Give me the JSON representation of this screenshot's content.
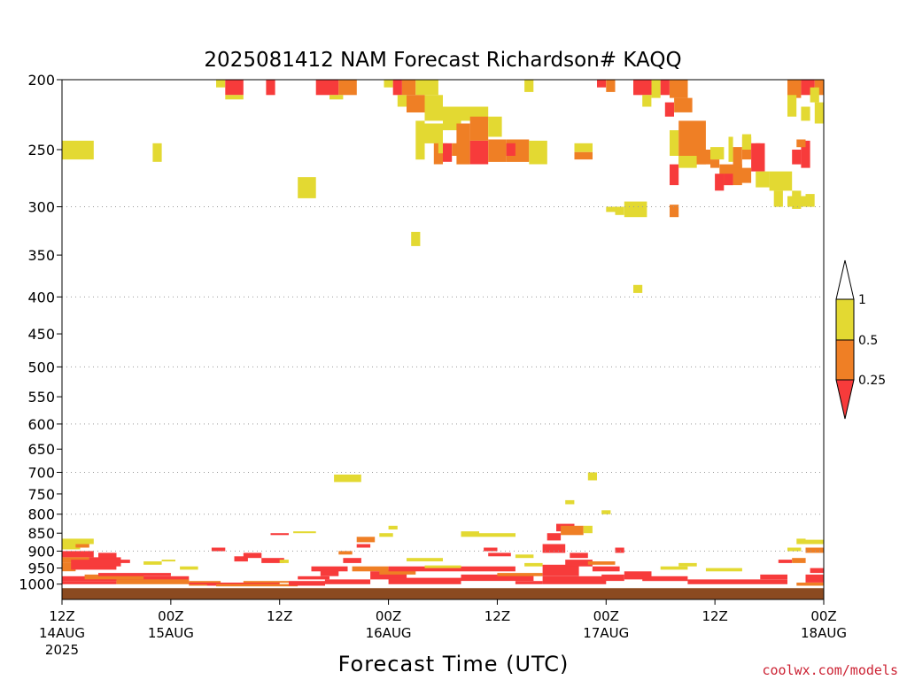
{
  "chart_data": {
    "type": "heatmap",
    "title": "2025081412 NAM Forecast Richardson# KAQQ",
    "xlabel": "Forecast Time (UTC)",
    "ylabel": "",
    "credit": "coolwx.com/models",
    "yaxis": {
      "scale": "log-pressure",
      "range": [
        1050,
        200
      ],
      "ticks": [
        200,
        250,
        300,
        350,
        400,
        450,
        500,
        550,
        600,
        650,
        700,
        750,
        800,
        850,
        900,
        950,
        1000
      ]
    },
    "xaxis": {
      "range_hours": [
        0,
        84
      ],
      "ticks": [
        {
          "hour": 0,
          "line1": "12Z",
          "line2": "14AUG",
          "line3": "2025"
        },
        {
          "hour": 12,
          "line1": "00Z",
          "line2": "15AUG",
          "line3": ""
        },
        {
          "hour": 24,
          "line1": "12Z",
          "line2": "",
          "line3": ""
        },
        {
          "hour": 36,
          "line1": "00Z",
          "line2": "16AUG",
          "line3": ""
        },
        {
          "hour": 48,
          "line1": "12Z",
          "line2": "",
          "line3": ""
        },
        {
          "hour": 60,
          "line1": "00Z",
          "line2": "17AUG",
          "line3": ""
        },
        {
          "hour": 72,
          "line1": "12Z",
          "line2": "",
          "line3": ""
        },
        {
          "hour": 84,
          "line1": "00Z",
          "line2": "18AUG",
          "line3": ""
        }
      ]
    },
    "gridlines_at": [
      300,
      400,
      500,
      600,
      700,
      800,
      900
    ],
    "colors": {
      "red": "#f73b3b",
      "orange": "#ef7f25",
      "yellow": "#e3d932",
      "ground": "#8b4a20"
    },
    "colorbar": {
      "labels": [
        "1",
        "0.5",
        "0.25"
      ],
      "bins": [
        "< 0.25",
        "0.25 - 0.5",
        "0.5 - 1",
        "> 1"
      ],
      "bin_colors": [
        "#f73b3b",
        "#ef7f25",
        "#e3d932",
        "#ffffff"
      ]
    },
    "ground_level_hPa": 1010,
    "cells": [
      [
        0.0,
        3.5,
        258,
        243,
        "yellow"
      ],
      [
        10.0,
        11.0,
        260,
        245,
        "yellow"
      ],
      [
        17.0,
        18.0,
        205,
        200,
        "yellow"
      ],
      [
        18.0,
        20.0,
        210,
        200,
        "red"
      ],
      [
        18.0,
        20.0,
        213,
        210,
        "yellow"
      ],
      [
        22.5,
        23.5,
        210,
        200,
        "red"
      ],
      [
        26.0,
        28.0,
        292,
        273,
        "yellow"
      ],
      [
        28.0,
        30.5,
        210,
        200,
        "red"
      ],
      [
        30.5,
        32.5,
        210,
        200,
        "orange"
      ],
      [
        29.5,
        31.0,
        213,
        210,
        "yellow"
      ],
      [
        35.5,
        36.5,
        205,
        200,
        "yellow"
      ],
      [
        36.5,
        37.5,
        210,
        200,
        "red"
      ],
      [
        37.0,
        38.0,
        218,
        210,
        "yellow"
      ],
      [
        37.5,
        39.0,
        210,
        200,
        "orange"
      ],
      [
        39.0,
        41.5,
        210,
        200,
        "yellow"
      ],
      [
        38.0,
        40.0,
        222,
        210,
        "orange"
      ],
      [
        40.0,
        42.0,
        228,
        210,
        "yellow"
      ],
      [
        38.5,
        39.5,
        340,
        325,
        "yellow"
      ],
      [
        39.0,
        40.0,
        258,
        228,
        "yellow"
      ],
      [
        40.0,
        42.0,
        245,
        230,
        "yellow"
      ],
      [
        41.0,
        42.0,
        262,
        245,
        "orange"
      ],
      [
        41.5,
        42.5,
        253,
        245,
        "yellow"
      ],
      [
        42.0,
        44.0,
        235,
        218,
        "yellow"
      ],
      [
        42.0,
        43.0,
        260,
        245,
        "red"
      ],
      [
        43.0,
        44.0,
        255,
        245,
        "orange"
      ],
      [
        44.0,
        47.0,
        228,
        218,
        "yellow"
      ],
      [
        43.5,
        45.0,
        262,
        230,
        "orange"
      ],
      [
        45.0,
        47.0,
        262,
        243,
        "red"
      ],
      [
        45.0,
        47.0,
        243,
        225,
        "orange"
      ],
      [
        47.0,
        48.5,
        225,
        240,
        "yellow"
      ],
      [
        47.0,
        49.0,
        260,
        242,
        "orange"
      ],
      [
        49.0,
        51.5,
        260,
        242,
        "orange"
      ],
      [
        49.0,
        50.0,
        255,
        245,
        "red"
      ],
      [
        51.5,
        53.5,
        262,
        243,
        "yellow"
      ],
      [
        51.0,
        52.0,
        208,
        200,
        "yellow"
      ],
      [
        56.5,
        58.5,
        252,
        245,
        "yellow"
      ],
      [
        56.5,
        58.5,
        258,
        252,
        "orange"
      ],
      [
        59.0,
        60.0,
        205,
        200,
        "red"
      ],
      [
        60.0,
        61.0,
        208,
        200,
        "orange"
      ],
      [
        60.0,
        61.0,
        305,
        300,
        "yellow"
      ],
      [
        61.0,
        62.0,
        308,
        300,
        "yellow"
      ],
      [
        62.0,
        64.5,
        310,
        295,
        "yellow"
      ],
      [
        63.0,
        64.0,
        395,
        385,
        "yellow"
      ],
      [
        63.0,
        65.0,
        210,
        200,
        "red"
      ],
      [
        64.0,
        65.0,
        218,
        210,
        "yellow"
      ],
      [
        65.0,
        66.0,
        212,
        200,
        "yellow"
      ],
      [
        66.0,
        67.0,
        210,
        200,
        "red"
      ],
      [
        66.5,
        67.5,
        225,
        215,
        "red"
      ],
      [
        67.0,
        69.0,
        212,
        200,
        "orange"
      ],
      [
        67.5,
        69.5,
        222,
        212,
        "orange"
      ],
      [
        67.0,
        68.0,
        255,
        235,
        "yellow"
      ],
      [
        67.0,
        68.0,
        280,
        262,
        "red"
      ],
      [
        67.0,
        68.0,
        310,
        298,
        "orange"
      ],
      [
        68.0,
        71.0,
        262,
        228,
        "orange"
      ],
      [
        68.0,
        70.0,
        265,
        255,
        "yellow"
      ],
      [
        70.0,
        71.5,
        262,
        250,
        "orange"
      ],
      [
        71.5,
        73.0,
        258,
        248,
        "yellow"
      ],
      [
        71.5,
        72.5,
        265,
        258,
        "orange"
      ],
      [
        72.5,
        74.0,
        280,
        262,
        "orange"
      ],
      [
        74.0,
        75.0,
        280,
        262,
        "orange"
      ],
      [
        73.5,
        74.0,
        260,
        240,
        "yellow"
      ],
      [
        74.0,
        75.0,
        268,
        248,
        "orange"
      ],
      [
        75.0,
        76.0,
        258,
        240,
        "orange"
      ],
      [
        72.0,
        73.0,
        285,
        270,
        "red"
      ],
      [
        73.0,
        74.0,
        280,
        270,
        "red"
      ],
      [
        74.0,
        76.0,
        278,
        265,
        "orange"
      ],
      [
        75.0,
        76.0,
        250,
        238,
        "yellow"
      ],
      [
        76.5,
        77.0,
        262,
        245,
        "orange"
      ],
      [
        76.0,
        77.5,
        268,
        245,
        "red"
      ],
      [
        76.5,
        78.0,
        282,
        268,
        "yellow"
      ],
      [
        78.0,
        80.5,
        285,
        268,
        "yellow"
      ],
      [
        78.5,
        79.5,
        300,
        285,
        "yellow"
      ],
      [
        80.5,
        81.5,
        302,
        285,
        "yellow"
      ],
      [
        80.0,
        82.0,
        300,
        290,
        "yellow"
      ],
      [
        80.5,
        81.5,
        262,
        250,
        "red"
      ],
      [
        81.5,
        82.5,
        265,
        243,
        "red"
      ],
      [
        81.0,
        82.0,
        248,
        242,
        "orange"
      ],
      [
        80.0,
        81.5,
        212,
        200,
        "orange"
      ],
      [
        81.5,
        83.0,
        210,
        200,
        "red"
      ],
      [
        83.0,
        84.0,
        210,
        200,
        "orange"
      ],
      [
        81.5,
        82.5,
        228,
        218,
        "yellow"
      ],
      [
        82.5,
        83.5,
        215,
        205,
        "yellow"
      ],
      [
        83.0,
        84.0,
        230,
        215,
        "yellow"
      ],
      [
        80.0,
        81.0,
        225,
        210,
        "yellow"
      ],
      [
        82.0,
        83.0,
        300,
        288,
        "yellow"
      ],
      [
        30.0,
        33.0,
        722,
        705,
        "yellow"
      ],
      [
        58.0,
        59.0,
        718,
        700,
        "yellow"
      ],
      [
        55.5,
        56.5,
        775,
        765,
        "yellow"
      ],
      [
        59.5,
        60.5,
        800,
        790,
        "yellow"
      ],
      [
        0.0,
        3.5,
        880,
        865,
        "yellow"
      ],
      [
        0.0,
        2.0,
        895,
        880,
        "yellow"
      ],
      [
        1.5,
        3.0,
        890,
        880,
        "orange"
      ],
      [
        0.0,
        3.5,
        918,
        900,
        "red"
      ],
      [
        0.0,
        3.5,
        935,
        918,
        "orange"
      ],
      [
        0.0,
        1.5,
        960,
        935,
        "orange"
      ],
      [
        1.0,
        6.0,
        955,
        925,
        "red"
      ],
      [
        3.0,
        6.5,
        945,
        918,
        "red"
      ],
      [
        4.0,
        6.0,
        920,
        905,
        "red"
      ],
      [
        6.0,
        7.5,
        935,
        925,
        "red"
      ],
      [
        0.0,
        14.0,
        990,
        975,
        "red"
      ],
      [
        0.0,
        6.0,
        1000,
        990,
        "red"
      ],
      [
        6.0,
        14.0,
        1000,
        985,
        "orange"
      ],
      [
        2.5,
        9.0,
        985,
        970,
        "orange"
      ],
      [
        4.0,
        12.0,
        975,
        965,
        "red"
      ],
      [
        9.0,
        11.0,
        940,
        930,
        "yellow"
      ],
      [
        11.0,
        12.5,
        930,
        925,
        "yellow"
      ],
      [
        13.0,
        15.0,
        955,
        945,
        "yellow"
      ],
      [
        14.0,
        17.5,
        1005,
        990,
        "orange"
      ],
      [
        14.0,
        18.0,
        1000,
        995,
        "red"
      ],
      [
        16.5,
        18.0,
        900,
        890,
        "red"
      ],
      [
        19.0,
        20.5,
        930,
        915,
        "red"
      ],
      [
        20.0,
        22.0,
        920,
        905,
        "red"
      ],
      [
        22.0,
        24.5,
        935,
        920,
        "red"
      ],
      [
        24.0,
        25.0,
        935,
        925,
        "yellow"
      ],
      [
        16.0,
        24.0,
        1005,
        995,
        "red"
      ],
      [
        17.0,
        26.0,
        1010,
        1000,
        "orange"
      ],
      [
        20.0,
        25.0,
        995,
        990,
        "orange"
      ],
      [
        25.5,
        28.0,
        850,
        845,
        "yellow"
      ],
      [
        23.0,
        25.0,
        855,
        850,
        "red"
      ],
      [
        25.0,
        29.0,
        1005,
        990,
        "red"
      ],
      [
        26.0,
        29.5,
        985,
        975,
        "red"
      ],
      [
        27.5,
        29.5,
        960,
        945,
        "red"
      ],
      [
        28.5,
        30.5,
        975,
        955,
        "red"
      ],
      [
        29.5,
        31.5,
        960,
        945,
        "red"
      ],
      [
        31.0,
        33.0,
        935,
        920,
        "red"
      ],
      [
        30.5,
        32.0,
        910,
        900,
        "orange"
      ],
      [
        29.0,
        34.0,
        1000,
        985,
        "red"
      ],
      [
        32.0,
        36.0,
        960,
        945,
        "orange"
      ],
      [
        32.5,
        34.0,
        890,
        880,
        "red"
      ],
      [
        32.5,
        34.5,
        875,
        860,
        "orange"
      ],
      [
        35.0,
        36.5,
        860,
        850,
        "yellow"
      ],
      [
        36.0,
        37.0,
        840,
        830,
        "yellow"
      ],
      [
        34.0,
        38.0,
        985,
        960,
        "red"
      ],
      [
        35.0,
        39.0,
        970,
        955,
        "orange"
      ],
      [
        36.0,
        44.0,
        1000,
        980,
        "red"
      ],
      [
        36.0,
        44.0,
        960,
        945,
        "red"
      ],
      [
        38.0,
        42.0,
        930,
        920,
        "yellow"
      ],
      [
        40.0,
        44.0,
        950,
        942,
        "yellow"
      ],
      [
        44.0,
        46.0,
        860,
        845,
        "yellow"
      ],
      [
        46.0,
        50.0,
        860,
        850,
        "yellow"
      ],
      [
        46.5,
        48.0,
        900,
        890,
        "red"
      ],
      [
        47.0,
        49.5,
        915,
        905,
        "red"
      ],
      [
        44.0,
        52.0,
        990,
        970,
        "red"
      ],
      [
        44.0,
        50.0,
        960,
        945,
        "red"
      ],
      [
        48.0,
        53.0,
        975,
        965,
        "orange"
      ],
      [
        50.0,
        53.0,
        1000,
        990,
        "red"
      ],
      [
        51.0,
        53.0,
        945,
        935,
        "yellow"
      ],
      [
        50.0,
        52.0,
        920,
        910,
        "yellow"
      ],
      [
        53.0,
        55.5,
        905,
        880,
        "red"
      ],
      [
        53.5,
        55.0,
        870,
        850,
        "red"
      ],
      [
        54.5,
        56.5,
        845,
        825,
        "red"
      ],
      [
        55.0,
        57.5,
        855,
        830,
        "orange"
      ],
      [
        57.5,
        58.5,
        850,
        830,
        "yellow"
      ],
      [
        53.0,
        57.0,
        975,
        940,
        "red"
      ],
      [
        53.0,
        60.0,
        1000,
        975,
        "red"
      ],
      [
        55.5,
        58.5,
        945,
        925,
        "red"
      ],
      [
        56.0,
        58.0,
        920,
        905,
        "red"
      ],
      [
        58.0,
        61.0,
        940,
        930,
        "orange"
      ],
      [
        58.5,
        61.5,
        960,
        945,
        "red"
      ],
      [
        59.5,
        62.0,
        990,
        970,
        "red"
      ],
      [
        61.0,
        62.0,
        905,
        890,
        "red"
      ],
      [
        62.0,
        65.0,
        985,
        960,
        "red"
      ],
      [
        64.0,
        69.0,
        990,
        975,
        "red"
      ],
      [
        66.0,
        69.0,
        955,
        945,
        "yellow"
      ],
      [
        68.0,
        70.0,
        945,
        935,
        "yellow"
      ],
      [
        69.0,
        73.5,
        1000,
        985,
        "red"
      ],
      [
        71.0,
        75.0,
        960,
        950,
        "yellow"
      ],
      [
        73.5,
        80.0,
        1000,
        985,
        "red"
      ],
      [
        77.0,
        80.0,
        985,
        970,
        "red"
      ],
      [
        79.0,
        80.5,
        935,
        925,
        "red"
      ],
      [
        80.5,
        82.0,
        935,
        920,
        "orange"
      ],
      [
        80.0,
        81.5,
        900,
        890,
        "yellow"
      ],
      [
        81.0,
        82.0,
        880,
        865,
        "yellow"
      ],
      [
        82.0,
        84.0,
        905,
        890,
        "orange"
      ],
      [
        82.0,
        84.0,
        880,
        868,
        "yellow"
      ],
      [
        82.0,
        84.0,
        995,
        970,
        "red"
      ],
      [
        82.5,
        84.0,
        965,
        950,
        "red"
      ],
      [
        81.0,
        84.0,
        1005,
        995,
        "orange"
      ]
    ]
  }
}
